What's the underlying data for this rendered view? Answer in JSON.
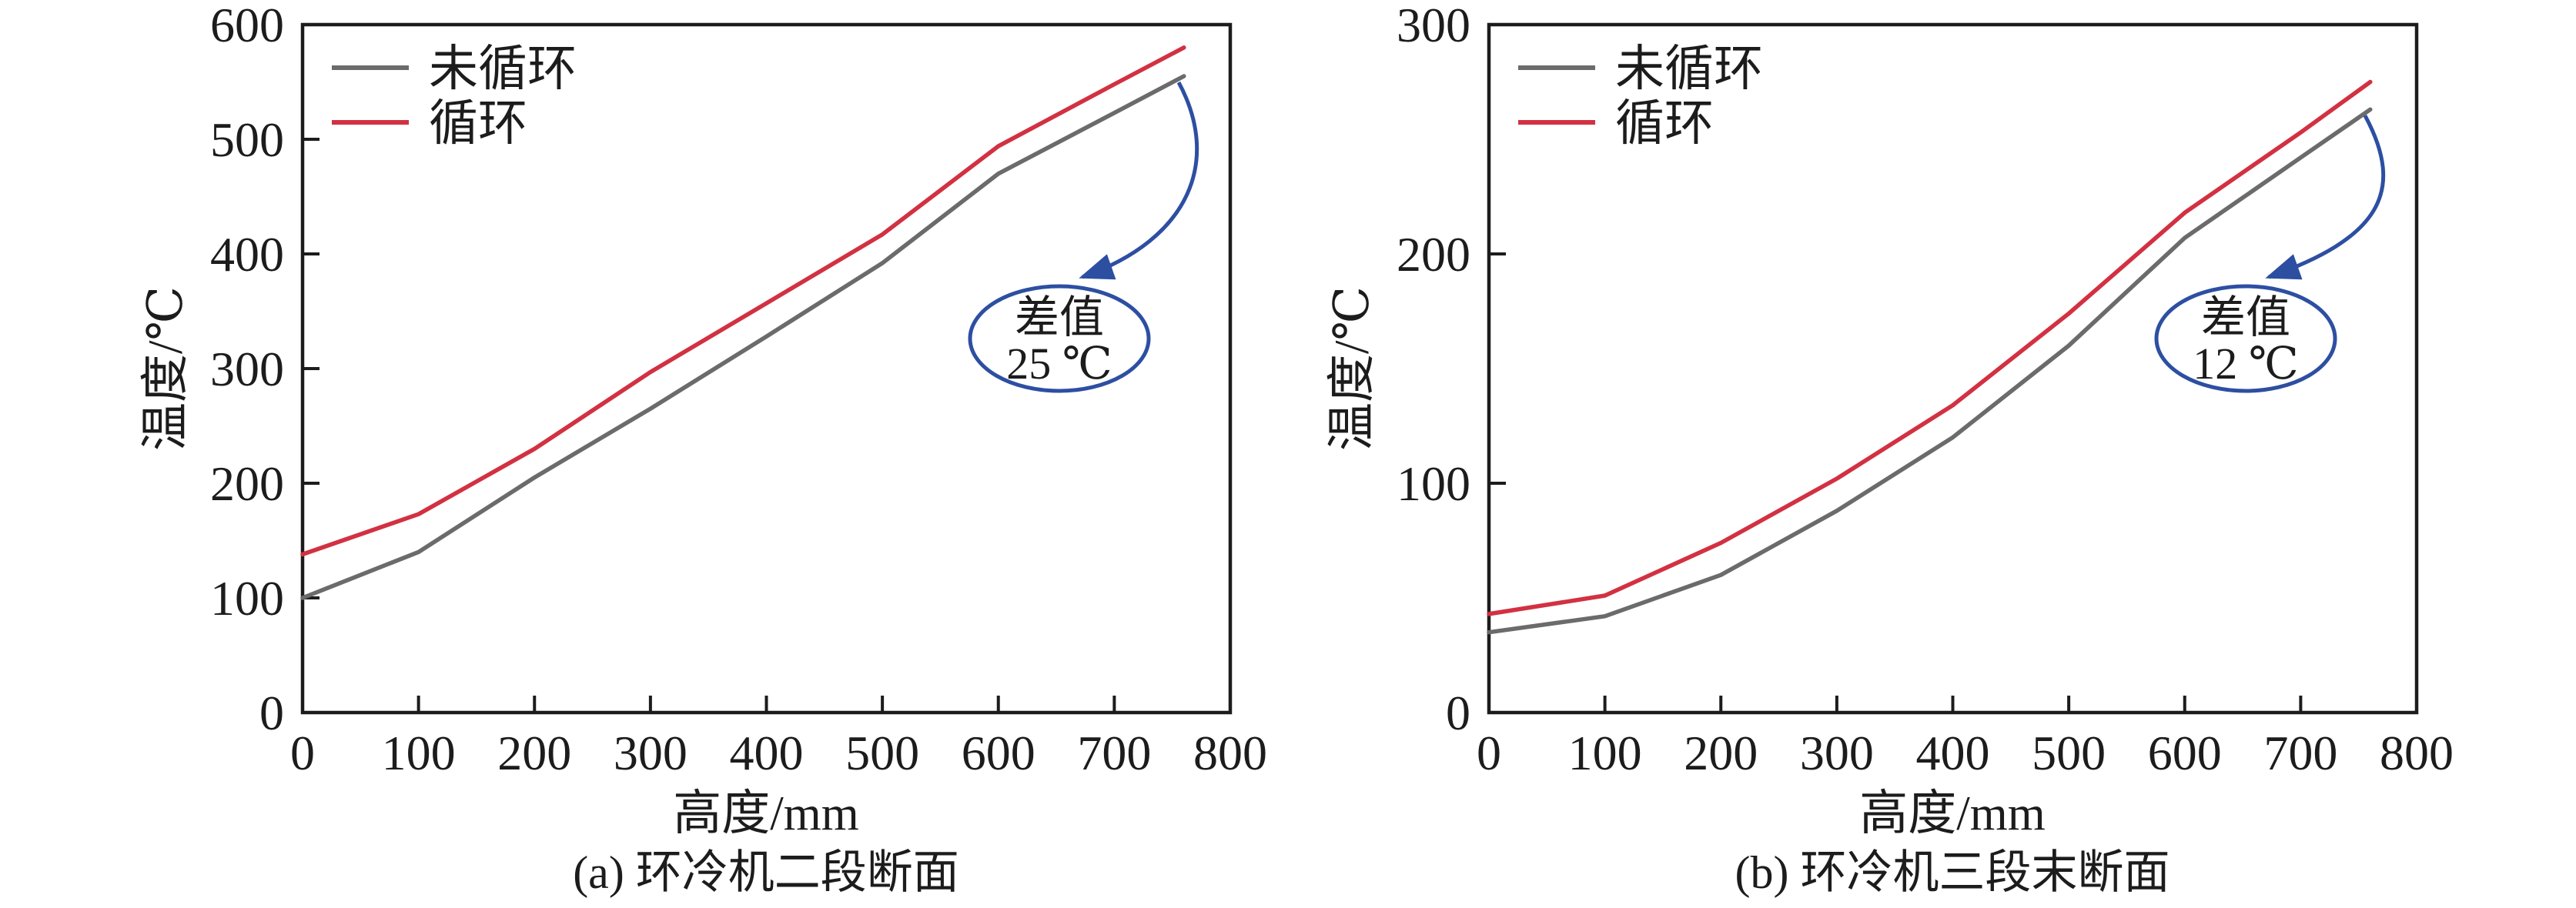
{
  "figure": {
    "background": "#ffffff"
  },
  "colors": {
    "axis": "#1c1c1c",
    "uncycled": "#6b6b6b",
    "cycled": "#d23142",
    "annotation": "#2d4fa2"
  },
  "legend": {
    "items": [
      {
        "label": "未循环",
        "color": "#6b6b6b"
      },
      {
        "label": "循环",
        "color": "#d23142"
      }
    ]
  },
  "chart_data": [
    {
      "type": "line",
      "title": "(a) 环冷机二段断面",
      "xlabel": "高度/mm",
      "ylabel": "温度/℃",
      "xlim": [
        0,
        800
      ],
      "ylim": [
        0,
        600
      ],
      "xticks": [
        0,
        100,
        200,
        300,
        400,
        500,
        600,
        700,
        800
      ],
      "yticks": [
        0,
        100,
        200,
        300,
        400,
        500,
        600
      ],
      "grid": false,
      "legend_position": "top-left",
      "x": [
        0,
        100,
        200,
        300,
        400,
        500,
        600,
        700,
        760
      ],
      "series": [
        {
          "name": "未循环",
          "color": "#6b6b6b",
          "values": [
            100,
            140,
            205,
            265,
            328,
            392,
            470,
            523,
            555
          ]
        },
        {
          "name": "循环",
          "color": "#d23142",
          "values": [
            138,
            173,
            230,
            297,
            357,
            417,
            494,
            548,
            580
          ]
        }
      ],
      "annotation": {
        "line1": "差值",
        "line2": "25 ℃"
      }
    },
    {
      "type": "line",
      "title": "(b) 环冷机三段末断面",
      "xlabel": "高度/mm",
      "ylabel": "温度/℃",
      "xlim": [
        0,
        800
      ],
      "ylim": [
        0,
        300
      ],
      "xticks": [
        0,
        100,
        200,
        300,
        400,
        500,
        600,
        700,
        800
      ],
      "yticks": [
        0,
        100,
        200,
        300
      ],
      "grid": false,
      "legend_position": "top-left",
      "x": [
        0,
        100,
        200,
        300,
        400,
        500,
        600,
        700,
        760
      ],
      "series": [
        {
          "name": "未循环",
          "color": "#6b6b6b",
          "values": [
            35,
            42,
            60,
            88,
            120,
            160,
            207,
            242,
            263
          ]
        },
        {
          "name": "循环",
          "color": "#d23142",
          "values": [
            43,
            51,
            74,
            102,
            134,
            174,
            218,
            253,
            275
          ]
        }
      ],
      "annotation": {
        "line1": "差值",
        "line2": "12 ℃"
      }
    }
  ]
}
